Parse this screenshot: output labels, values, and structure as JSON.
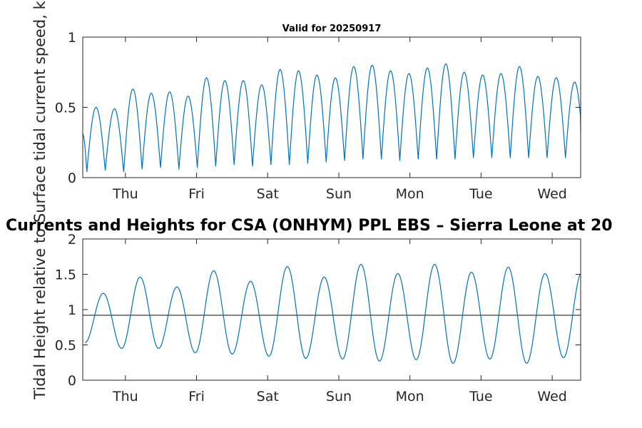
{
  "figure": {
    "main_title": "Currents and Heights for CSA (ONHYM) PPL EBS  – Sierra Leone at 20"
  },
  "colors": {
    "series": "#0072bd",
    "reference": "#262626",
    "axis": "#262626"
  },
  "chart_data": [
    {
      "type": "line",
      "title": "Valid for 20250917",
      "xlabel": "",
      "ylabel": "Surface tidal current speed, kn",
      "ylim": [
        0,
        1
      ],
      "yticks": [
        0,
        0.5,
        1
      ],
      "ytick_labels": [
        "0",
        "0.5",
        "1"
      ],
      "x_units": "days after Wed 00:00 (2025-09-17)",
      "xlim": [
        0.4,
        7.4
      ],
      "xticks": [
        1,
        2,
        3,
        4,
        5,
        6,
        7
      ],
      "xtick_labels": [
        "Thu",
        "Fri",
        "Sat",
        "Sun",
        "Mon",
        "Tue",
        "Wed"
      ],
      "grid": false,
      "series": [
        {
          "period_days": 0.2588,
          "first_peak_day": 0.587,
          "start_value": 0.31,
          "end_value": 0.33,
          "peaks": [
            0.5,
            0.49,
            0.63,
            0.6,
            0.61,
            0.58,
            0.71,
            0.69,
            0.69,
            0.66,
            0.77,
            0.76,
            0.73,
            0.71,
            0.79,
            0.8,
            0.76,
            0.74,
            0.78,
            0.81,
            0.75,
            0.73,
            0.74,
            0.79,
            0.72,
            0.71,
            0.68
          ],
          "troughs": [
            0.04,
            0.05,
            0.04,
            0.06,
            0.07,
            0.06,
            0.07,
            0.08,
            0.09,
            0.08,
            0.09,
            0.09,
            0.1,
            0.11,
            0.12,
            0.13,
            0.13,
            0.12,
            0.13,
            0.13,
            0.13,
            0.14,
            0.14,
            0.14,
            0.14,
            0.14,
            0.14,
            0.14
          ]
        }
      ]
    },
    {
      "type": "line",
      "title": "",
      "xlabel": "",
      "ylabel": "Tidal Height relative to",
      "ylim": [
        0,
        2
      ],
      "yticks": [
        0,
        0.5,
        1,
        1.5,
        2
      ],
      "ytick_labels": [
        "0",
        "0.5",
        "1",
        "1.5",
        "2"
      ],
      "x_units": "days after Wed 00:00 (2025-09-17)",
      "xlim": [
        0.4,
        7.4
      ],
      "xticks": [
        1,
        2,
        3,
        4,
        5,
        6,
        7
      ],
      "xtick_labels": [
        "Thu",
        "Fri",
        "Sat",
        "Sun",
        "Mon",
        "Tue",
        "Wed"
      ],
      "grid": false,
      "reference_level": 0.92,
      "series": [
        {
          "period_days": 0.5176,
          "first_extremum_day": 0.43,
          "first_extremum_value": 0.53,
          "extrema": [
            0.53,
            1.23,
            0.45,
            1.46,
            0.45,
            1.32,
            0.39,
            1.55,
            0.37,
            1.4,
            0.34,
            1.61,
            0.31,
            1.46,
            0.3,
            1.64,
            0.27,
            1.51,
            0.29,
            1.64,
            0.24,
            1.53,
            0.3,
            1.6,
            0.24,
            1.51,
            0.32,
            1.53
          ],
          "end_value": 1.45
        }
      ]
    }
  ]
}
